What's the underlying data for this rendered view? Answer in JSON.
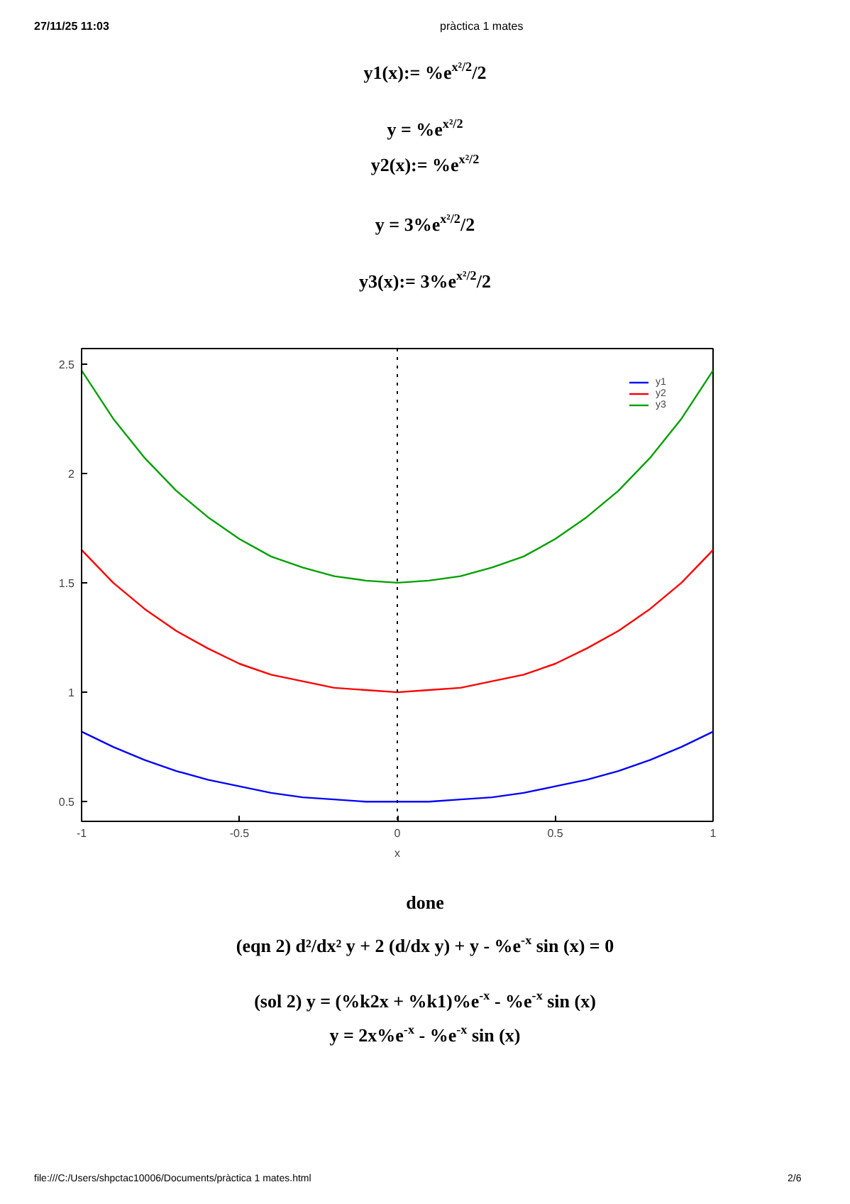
{
  "chart_data": {
    "type": "line",
    "title": "pràctica 1 mates",
    "xlabel": "x",
    "annotations": [
      "27/11/25 11:03",
      "y1(x):= %e$^{x²/2}$/2",
      "y = %e$^{x²/2}$",
      "y2(x):= %e$^{x²/2}$",
      "y = 3%e$^{x²/2}$/2",
      "y3(x):= 3%e$^{x²/2}$/2",
      "done",
      "(eqn 2) d²/dx² y + 2 (d/dx y) + y - %e$^{-x}$ sin (x) = 0",
      "(sol 2) y = (%k2x + %k1)%e$^{-x}$ - %e$^{-x}$ sin (x)",
      "y = 2x%e$^{-x}$ - %e$^{-x}$ sin (x)",
      "file:///C:/Users/shpctac10006/Documents/pràctica 1 mates.html",
      "2/6"
    ],
    "x": [
      -1,
      -0.9,
      -0.8,
      -0.7,
      -0.6,
      -0.5,
      -0.4,
      -0.3,
      -0.2,
      -0.1,
      0,
      0.1,
      0.2,
      0.3,
      0.4,
      0.5,
      0.6,
      0.7,
      0.8,
      0.9,
      1
    ],
    "series": [
      {
        "name": "y1",
        "color": "#0000ff",
        "values": [
          0.82,
          0.75,
          0.69,
          0.64,
          0.6,
          0.57,
          0.54,
          0.52,
          0.51,
          0.5,
          0.5,
          0.5,
          0.51,
          0.52,
          0.54,
          0.57,
          0.6,
          0.64,
          0.69,
          0.75,
          0.82
        ]
      },
      {
        "name": "y2",
        "color": "#ff0000",
        "values": [
          1.65,
          1.5,
          1.38,
          1.28,
          1.2,
          1.13,
          1.08,
          1.05,
          1.02,
          1.01,
          1.0,
          1.01,
          1.02,
          1.05,
          1.08,
          1.13,
          1.2,
          1.28,
          1.38,
          1.5,
          1.65
        ]
      },
      {
        "name": "y3",
        "color": "#00a000",
        "values": [
          2.47,
          2.25,
          2.07,
          1.92,
          1.8,
          1.7,
          1.62,
          1.57,
          1.53,
          1.51,
          1.5,
          1.51,
          1.53,
          1.57,
          1.62,
          1.7,
          1.8,
          1.92,
          2.07,
          2.25,
          2.47
        ]
      }
    ],
    "xlim": [
      -1,
      1
    ],
    "ylim": [
      0.41,
      2.57
    ],
    "xticks": [
      -1,
      -0.5,
      0,
      0.5,
      1
    ],
    "yticks": [
      0.5,
      1,
      1.5,
      2,
      2.5
    ],
    "ref_lines": [
      {
        "axis": "x",
        "value": 0,
        "color": "#000000",
        "line_style": "dotted"
      }
    ],
    "legend": "top right",
    "grid": false
  }
}
